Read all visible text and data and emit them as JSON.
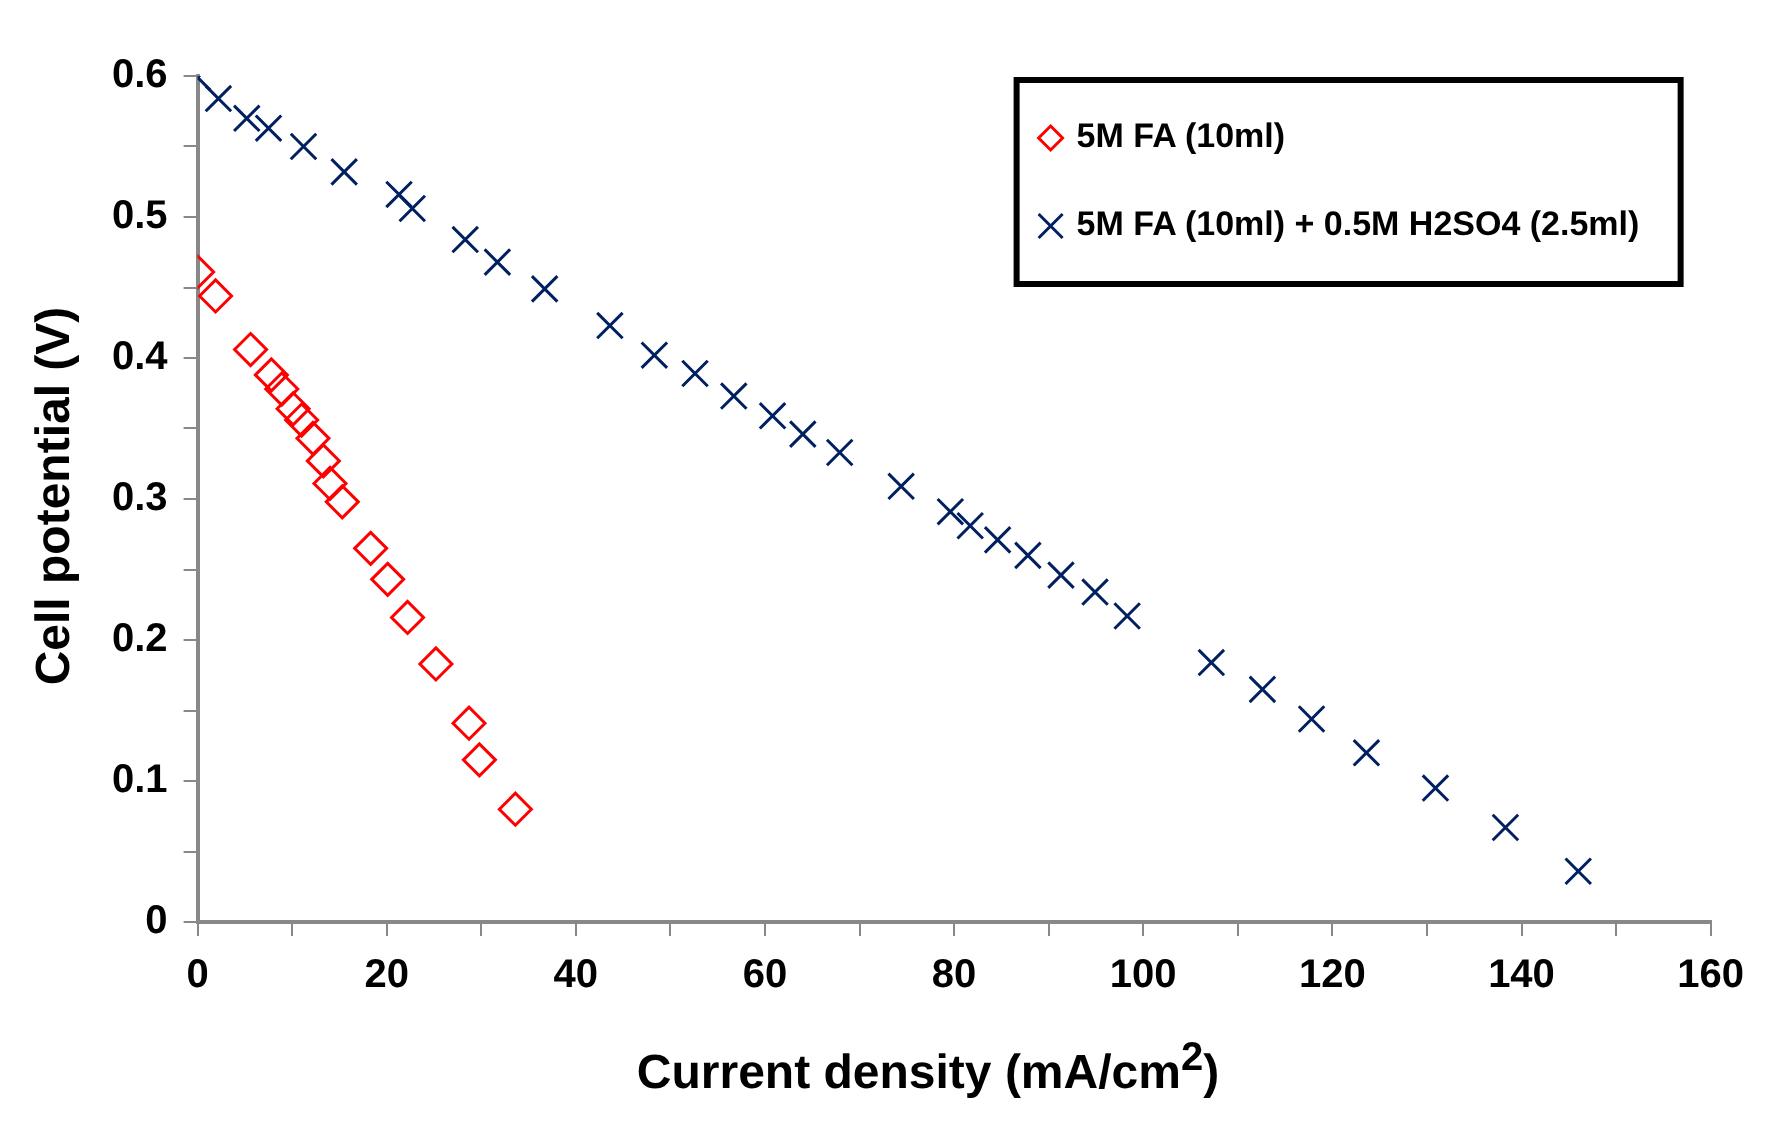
{
  "chart_data": {
    "type": "scatter",
    "xlabel": "Current density (mA/cm$^{2}$)",
    "ylabel": "Cell potential (V)",
    "xlim": [
      0,
      160
    ],
    "xticks": [
      0,
      {
        "value": 10,
        "label": null
      },
      20,
      {
        "value": 30,
        "label": null
      },
      40,
      {
        "value": 50,
        "label": null
      },
      60,
      {
        "value": 70,
        "label": null
      },
      80,
      {
        "value": 90,
        "label": null
      },
      100,
      {
        "value": 110,
        "label": null
      },
      120,
      {
        "value": 130,
        "label": null
      },
      140,
      {
        "value": 150,
        "label": null
      },
      160
    ],
    "ylim": [
      0,
      0.6
    ],
    "yticks": [
      0,
      {
        "value": 0.05,
        "label": null
      },
      0.1,
      {
        "value": 0.15,
        "label": null
      },
      0.2,
      {
        "value": 0.25,
        "label": null
      },
      0.3,
      {
        "value": 0.35,
        "label": null
      },
      0.4,
      {
        "value": 0.45,
        "label": null
      },
      0.5,
      {
        "value": 0.55,
        "label": null
      },
      0.6
    ],
    "grid": false,
    "legend": "top right",
    "series": [
      {
        "name": "5M FA (10ml)",
        "color": "#ff0000",
        "marker": "diamond",
        "x": [
          0,
          1.9,
          5.6,
          7.8,
          8.9,
          10.1,
          11.0,
          12.2,
          13.3,
          14.0,
          15.3,
          18.3,
          20.1,
          22.2,
          25.2,
          28.7,
          29.8,
          33.6
        ],
        "values": [
          0.461,
          0.444,
          0.406,
          0.388,
          0.378,
          0.364,
          0.356,
          0.343,
          0.327,
          0.311,
          0.298,
          0.265,
          0.243,
          0.216,
          0.183,
          0.141,
          0.115,
          0.08
        ]
      },
      {
        "name": "5M FA (10ml) + 0.5M H2SO4 (2.5ml)",
        "color": "#002060",
        "marker": "cross",
        "x": [
          0,
          2.2,
          5.2,
          7.5,
          11.2,
          15.5,
          21.3,
          22.7,
          28.3,
          31.7,
          36.7,
          43.6,
          48.3,
          52.6,
          56.7,
          60.8,
          64.0,
          67.9,
          74.4,
          79.6,
          81.7,
          84.6,
          87.8,
          91.3,
          94.9,
          98.3,
          107.2,
          112.6,
          117.8,
          123.6,
          130.9,
          138.3,
          146.0
        ],
        "values": [
          0.599,
          0.584,
          0.57,
          0.563,
          0.55,
          0.532,
          0.516,
          0.506,
          0.484,
          0.468,
          0.449,
          0.423,
          0.402,
          0.389,
          0.373,
          0.359,
          0.346,
          0.333,
          0.309,
          0.291,
          0.281,
          0.271,
          0.26,
          0.246,
          0.234,
          0.217,
          0.184,
          0.165,
          0.144,
          0.12,
          0.095,
          0.067,
          0.036
        ]
      }
    ]
  }
}
